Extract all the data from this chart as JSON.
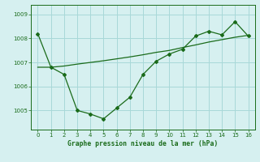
{
  "x": [
    0,
    1,
    2,
    3,
    4,
    5,
    6,
    7,
    8,
    9,
    10,
    11,
    12,
    13,
    14,
    15,
    16
  ],
  "y_jagged": [
    1008.2,
    1006.8,
    1006.5,
    1005.0,
    1004.85,
    1004.65,
    1005.1,
    1005.55,
    1006.5,
    1007.05,
    1007.35,
    1007.55,
    1008.1,
    1008.3,
    1008.15,
    1008.7,
    1008.1
  ],
  "y_trend": [
    1006.8,
    1006.8,
    1006.85,
    1006.93,
    1007.0,
    1007.07,
    1007.15,
    1007.23,
    1007.32,
    1007.42,
    1007.5,
    1007.62,
    1007.73,
    1007.85,
    1007.95,
    1008.05,
    1008.13
  ],
  "line_color": "#1a6b1a",
  "bg_color": "#d6f0f0",
  "grid_color": "#a8d8d8",
  "xlabel": "Graphe pression niveau de la mer (hPa)",
  "xlim": [
    -0.5,
    16.5
  ],
  "ylim": [
    1004.2,
    1009.4
  ],
  "yticks": [
    1005,
    1006,
    1007,
    1008,
    1009
  ],
  "xticks": [
    0,
    1,
    2,
    3,
    4,
    5,
    6,
    7,
    8,
    9,
    10,
    11,
    12,
    13,
    14,
    15,
    16
  ],
  "xlabel_fontsize": 5.8,
  "tick_fontsize": 5.0
}
